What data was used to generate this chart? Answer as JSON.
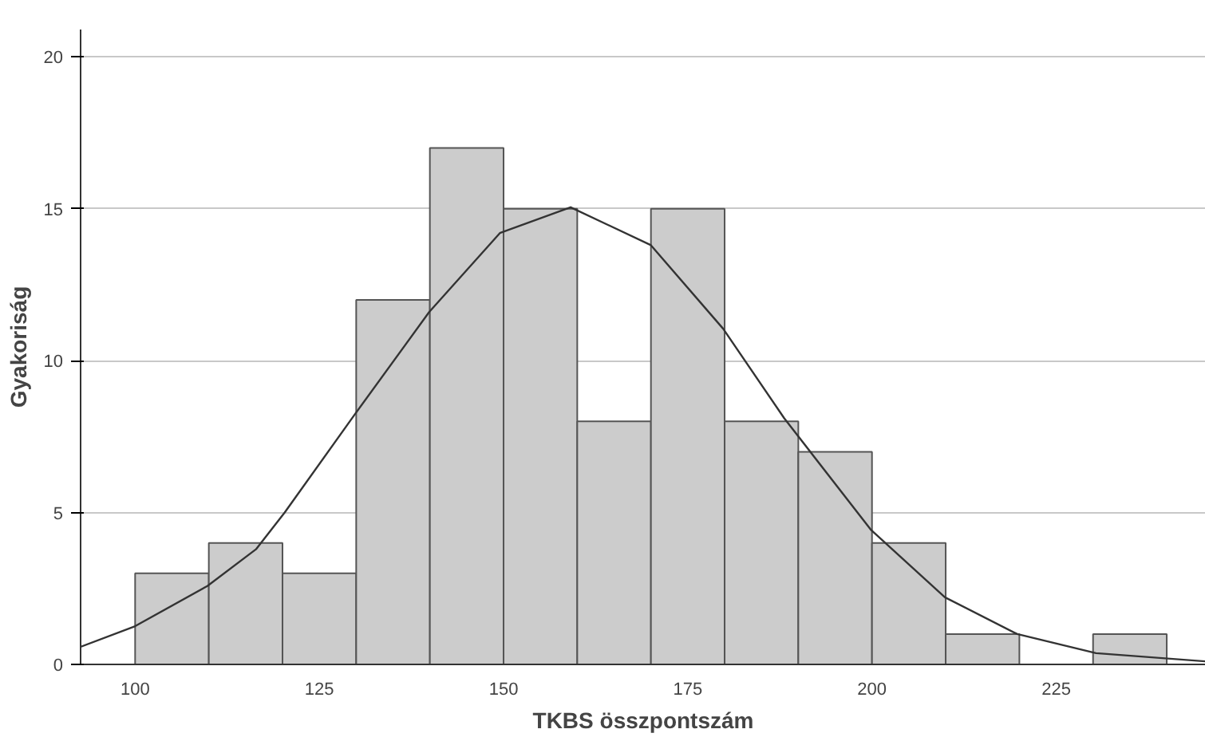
{
  "chart_data": {
    "type": "histogram",
    "xlabel": "TKBS összpontszám",
    "ylabel": "Gyakoriság",
    "bins": [
      100,
      110,
      120,
      130,
      140,
      150,
      160,
      170,
      180,
      190,
      200,
      210,
      220,
      230,
      240
    ],
    "values": [
      3,
      4,
      3,
      12,
      17,
      15,
      8,
      15,
      8,
      7,
      4,
      1,
      0,
      1
    ],
    "color": "#cccccc",
    "series": [
      {
        "type": "line",
        "color": "#333333",
        "x": [
          92.6,
          100,
          109.8,
          116.4,
          120.3,
          129.9,
          139.9,
          149.5,
          159.1,
          170.0,
          179.8,
          188.1,
          199.9,
          209.9,
          219.7,
          230.4,
          245.3
        ],
        "values": [
          0.58,
          1.26,
          2.58,
          3.79,
          5.0,
          8.26,
          11.6,
          14.2,
          15.05,
          13.8,
          11.05,
          8.1,
          4.42,
          2.21,
          1.0,
          0.37,
          0.1
        ]
      }
    ],
    "xlim": [
      92.6,
      245.3
    ],
    "ylim": [
      0,
      20.9
    ],
    "xticks": [
      100,
      125,
      150,
      175,
      200,
      225
    ],
    "yticks": [
      0,
      5,
      10,
      15,
      20
    ],
    "grid": "y"
  }
}
